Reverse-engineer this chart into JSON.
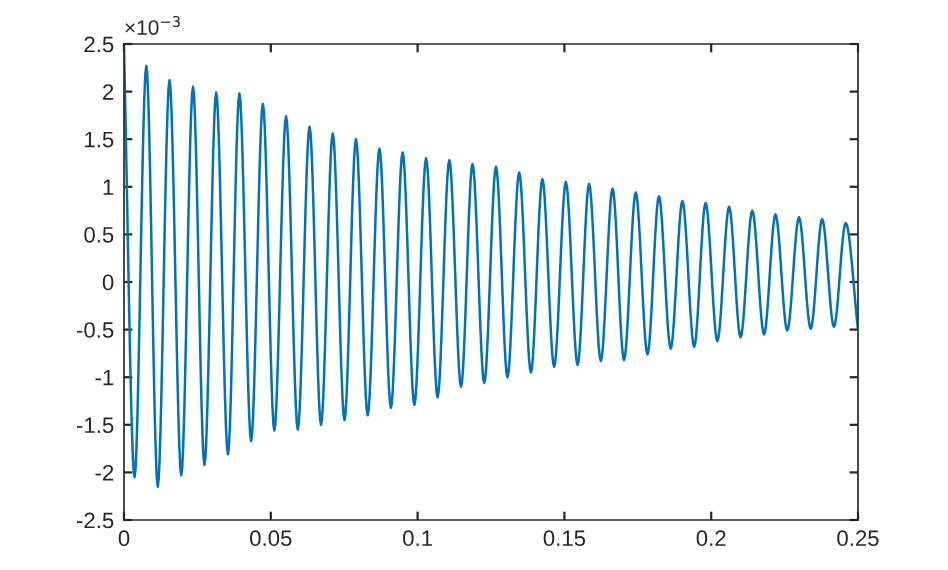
{
  "chart_data": {
    "type": "line",
    "x": [
      0,
      0.0036,
      0.0076,
      0.0115,
      0.0155,
      0.0195,
      0.0235,
      0.0274,
      0.0314,
      0.0354,
      0.0393,
      0.0433,
      0.0473,
      0.0512,
      0.0552,
      0.0592,
      0.0632,
      0.0671,
      0.0711,
      0.0751,
      0.079,
      0.083,
      0.087,
      0.0909,
      0.0949,
      0.0989,
      0.1029,
      0.1068,
      0.1108,
      0.1148,
      0.1187,
      0.1227,
      0.1267,
      0.1306,
      0.1346,
      0.1386,
      0.1425,
      0.1465,
      0.1505,
      0.1545,
      0.1584,
      0.1624,
      0.1664,
      0.1703,
      0.1743,
      0.1783,
      0.1822,
      0.1862,
      0.1902,
      0.1942,
      0.1981,
      0.2021,
      0.2061,
      0.21,
      0.214,
      0.218,
      0.2219,
      0.2259,
      0.2299,
      0.2339,
      0.2378,
      0.2418,
      0.2458,
      0.25
    ],
    "series": [
      {
        "color": "#0072bd",
        "values": [
          2.45,
          -2.05,
          2.27,
          -2.15,
          2.12,
          -2.03,
          2.05,
          -1.92,
          1.99,
          -1.81,
          1.98,
          -1.67,
          1.87,
          -1.56,
          1.74,
          -1.55,
          1.63,
          -1.5,
          1.56,
          -1.45,
          1.5,
          -1.4,
          1.4,
          -1.32,
          1.36,
          -1.29,
          1.3,
          -1.21,
          1.28,
          -1.1,
          1.24,
          -1.06,
          1.21,
          -1.0,
          1.15,
          -0.95,
          1.08,
          -0.89,
          1.05,
          -0.87,
          1.03,
          -0.83,
          0.98,
          -0.82,
          0.94,
          -0.76,
          0.9,
          -0.7,
          0.85,
          -0.68,
          0.83,
          -0.62,
          0.79,
          -0.58,
          0.75,
          -0.55,
          0.71,
          -0.51,
          0.68,
          -0.49,
          0.66,
          -0.47,
          0.62,
          -0.5
        ]
      }
    ],
    "xlim": [
      0,
      0.25
    ],
    "xticks": [
      0,
      0.05,
      0.1,
      0.15,
      0.2,
      0.25
    ],
    "ylim": [
      -2.5,
      2.5
    ],
    "yticks": [
      -2.5,
      -2,
      -1.5,
      -1,
      -0.5,
      0,
      0.5,
      1,
      1.5,
      2,
      2.5
    ],
    "annotations": [
      "×10$^{−3}$"
    ],
    "grid": false,
    "marker": "none",
    "line_style": "solid"
  }
}
